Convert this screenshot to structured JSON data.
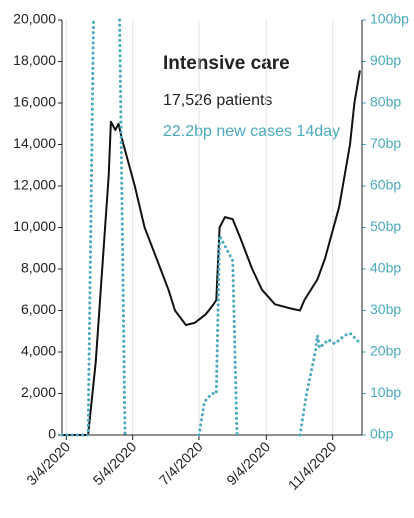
{
  "chart_data": {
    "type": "line",
    "annotations": [
      "Intensive care",
      "17,526 patients",
      "22.2bp new cases 14day"
    ],
    "xlim": [
      "2020-02-29",
      "2020-12-01"
    ],
    "xticks": [
      {
        "value": "2020-03-04",
        "label": "3/4/2020"
      },
      {
        "value": "2020-05-04",
        "label": "5/4/2020"
      },
      {
        "value": "2020-07-04",
        "label": "7/4/2020"
      },
      {
        "value": "2020-09-04",
        "label": "9/4/2020"
      },
      {
        "value": "2020-11-04",
        "label": "11/4/2020"
      }
    ],
    "ylim": [
      0,
      20000
    ],
    "yticks": [
      {
        "value": 0,
        "label": "0"
      },
      {
        "value": 2000,
        "label": "2,000"
      },
      {
        "value": 4000,
        "label": "4,000"
      },
      {
        "value": 6000,
        "label": "6,000"
      },
      {
        "value": 8000,
        "label": "8,000"
      },
      {
        "value": 10000,
        "label": "10,000"
      },
      {
        "value": 12000,
        "label": "12,000"
      },
      {
        "value": 14000,
        "label": "14,000"
      },
      {
        "value": 16000,
        "label": "16,000"
      },
      {
        "value": 18000,
        "label": "18,000"
      },
      {
        "value": 20000,
        "label": "20,000"
      }
    ],
    "y2lim": [
      0,
      100
    ],
    "y2ticks": [
      {
        "value": 0,
        "label": "0bp"
      },
      {
        "value": 10,
        "label": "10bp"
      },
      {
        "value": 20,
        "label": "20bp"
      },
      {
        "value": 30,
        "label": "30bp"
      },
      {
        "value": 40,
        "label": "40bp"
      },
      {
        "value": 50,
        "label": "50bp"
      },
      {
        "value": 60,
        "label": "60bp"
      },
      {
        "value": 70,
        "label": "70bp"
      },
      {
        "value": 80,
        "label": "80bp"
      },
      {
        "value": 90,
        "label": "90bp"
      },
      {
        "value": 100,
        "label": "100bp"
      }
    ],
    "series": [
      {
        "color": "#111111",
        "dash": false,
        "x": [
          "2020-02-29",
          "2020-03-24",
          "2020-03-31",
          "2020-04-06",
          "2020-04-12",
          "2020-04-14",
          "2020-04-18",
          "2020-04-21",
          "2020-04-24",
          "2020-05-06",
          "2020-05-15",
          "2020-05-26",
          "2020-06-06",
          "2020-06-12",
          "2020-06-22",
          "2020-06-30",
          "2020-07-10",
          "2020-07-16",
          "2020-07-20",
          "2020-07-23",
          "2020-07-28",
          "2020-08-04",
          "2020-08-11",
          "2020-08-22",
          "2020-08-31",
          "2020-09-12",
          "2020-09-26",
          "2020-10-05",
          "2020-10-09",
          "2020-10-21",
          "2020-10-28",
          "2020-11-10",
          "2020-11-20",
          "2020-11-24",
          "2020-11-29"
        ],
        "values": [
          0,
          0,
          3500,
          8000,
          12500,
          15100,
          14700,
          15000,
          14300,
          12000,
          10000,
          8500,
          7000,
          6000,
          5300,
          5400,
          5800,
          6200,
          6500,
          10000,
          10500,
          10400,
          9500,
          8000,
          7000,
          6300,
          6100,
          6000,
          6500,
          7500,
          8500,
          11000,
          14000,
          16000,
          17526
        ]
      },
      {
        "color": "#4aaac0",
        "dash": true,
        "axis": "y2",
        "x": [
          "2020-02-29",
          "2020-03-24",
          "2020-03-29",
          "2020-04-10",
          "2020-04-22",
          "2020-04-27",
          "2020-06-20",
          "2020-07-04",
          "2020-07-09",
          "2020-07-16",
          "2020-07-20",
          "2020-07-23",
          "2020-07-29",
          "2020-08-04",
          "2020-08-08",
          "2020-09-15",
          "2020-10-05",
          "2020-10-11",
          "2020-10-19",
          "2020-10-21",
          "2020-10-23",
          "2020-10-31",
          "2020-11-06",
          "2020-11-15",
          "2020-11-20",
          "2020-11-24",
          "2020-11-29"
        ],
        "values": [
          0,
          0,
          100,
          null,
          100,
          0,
          null,
          0,
          8,
          10,
          10,
          48,
          45,
          42,
          0,
          null,
          0,
          10,
          20,
          24,
          21,
          23,
          22,
          24,
          24.5,
          23.5,
          22.2
        ]
      }
    ]
  }
}
